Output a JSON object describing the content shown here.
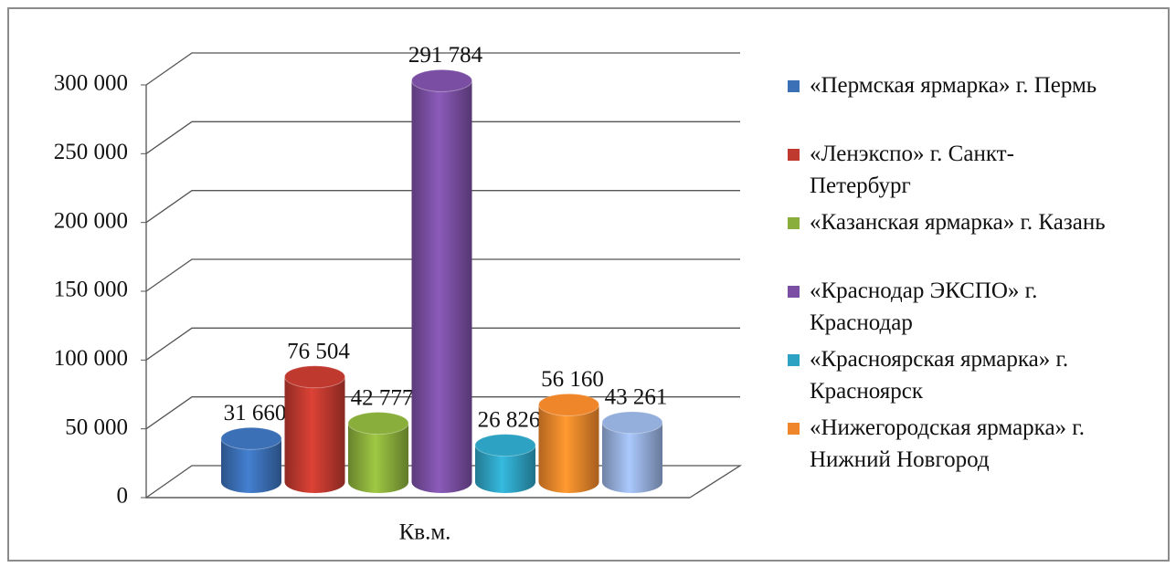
{
  "chart_data": {
    "type": "bar3d",
    "categories": [
      "Кв.м."
    ],
    "series": [
      {
        "name": "«Пермская ярмарка» г. Пермь",
        "color": "#3b6fb6",
        "values": [
          31660
        ],
        "value_labels": [
          "31 660"
        ]
      },
      {
        "name": "«Ленэкспо» г. Санкт-Петербург",
        "color": "#c0392f",
        "values": [
          76504
        ],
        "value_labels": [
          "76 504"
        ]
      },
      {
        "name": "«Казанская ярмарка» г. Казань",
        "color": "#8aae3b",
        "values": [
          42777
        ],
        "value_labels": [
          "42 777"
        ]
      },
      {
        "name": "«Краснодар ЭКСПО»  г. Краснодар",
        "color": "#7a4fa3",
        "values": [
          291784
        ],
        "value_labels": [
          "291 784"
        ]
      },
      {
        "name": "«Красноярская ярмарка» г. Красноярск",
        "color": "#2ea2c2",
        "values": [
          26826
        ],
        "value_labels": [
          "26 826"
        ]
      },
      {
        "name": "«Нижегородская ярмарка» г. Нижний Новгород",
        "color": "#f0862a",
        "values": [
          56160
        ],
        "value_labels": [
          "56 160"
        ]
      },
      {
        "name": null,
        "color": "#95afdc",
        "values": [
          43261
        ],
        "value_labels": [
          "43 261"
        ]
      }
    ],
    "ylim": [
      0,
      300000
    ],
    "yticks": [
      0,
      {
        "value": 50000,
        "label": "50 000"
      },
      {
        "value": 100000,
        "label": "100 000"
      },
      {
        "value": 150000,
        "label": "150 000"
      },
      {
        "value": 200000,
        "label": "200 000"
      },
      {
        "value": 250000,
        "label": "250 000"
      },
      {
        "value": 300000,
        "label": "300 000"
      }
    ],
    "grid": true
  }
}
